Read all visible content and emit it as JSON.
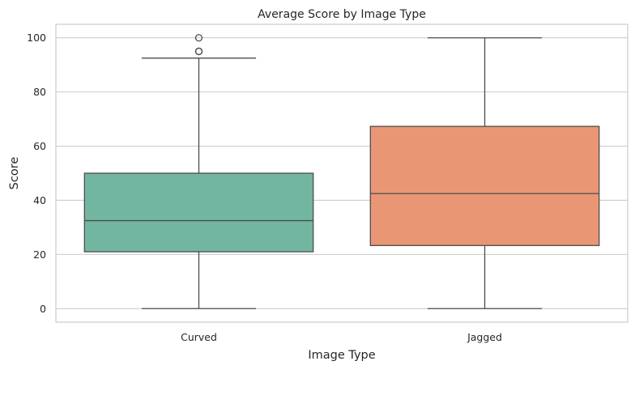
{
  "chart_data": {
    "type": "box",
    "title": "Average Score by Image Type",
    "xlabel": "Image Type",
    "ylabel": "Score",
    "ylim": [
      -5,
      105
    ],
    "yticks": [
      0,
      20,
      40,
      60,
      80,
      100
    ],
    "grid": true,
    "categories": [
      "Curved",
      "Jagged"
    ],
    "boxes": [
      {
        "category": "Curved",
        "color": "#72b6a1",
        "whisker_low": 0,
        "q1": 21,
        "median": 32.5,
        "q3": 50,
        "whisker_high": 92.5,
        "outliers": [
          95,
          95,
          100
        ]
      },
      {
        "category": "Jagged",
        "color": "#e99675",
        "whisker_low": 0,
        "q1": 23.3,
        "median": 42.5,
        "q3": 67.3,
        "whisker_high": 100,
        "outliers": []
      }
    ]
  }
}
